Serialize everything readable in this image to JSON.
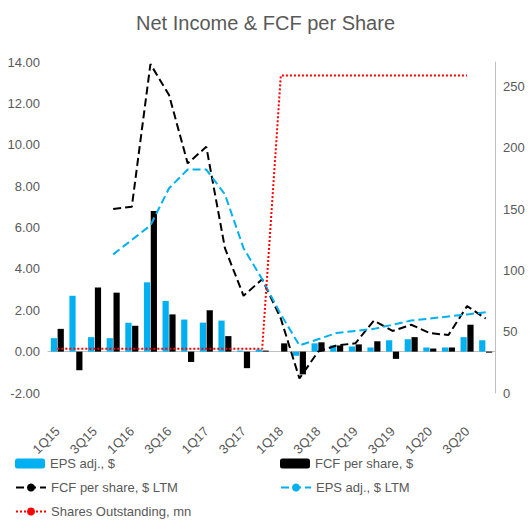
{
  "chart_data": {
    "type": "bar",
    "title": "Net Income & FCF per Share",
    "categories": [
      "1Q15",
      null,
      "3Q15",
      null,
      "1Q16",
      null,
      "3Q16",
      null,
      "1Q17",
      null,
      "3Q17",
      null,
      "1Q18",
      null,
      "3Q18",
      null,
      "1Q19",
      null,
      "3Q19",
      null,
      "1Q20",
      null,
      "3Q20",
      null
    ],
    "series": [
      {
        "name": "EPS adj., $",
        "type": "bar",
        "color": "#00B0F0",
        "values": [
          0.65,
          2.7,
          0.7,
          0.65,
          1.4,
          3.35,
          2.45,
          1.55,
          1.4,
          1.5,
          0.05,
          0.1,
          0.0,
          -0.2,
          0.4,
          0.3,
          0.25,
          0.2,
          0.55,
          0.6,
          0.2,
          0.2,
          0.7,
          0.55
        ]
      },
      {
        "name": "FCF per share, $",
        "type": "bar",
        "color": "#000000",
        "values": [
          1.1,
          -0.9,
          3.1,
          2.85,
          1.25,
          6.8,
          1.8,
          -0.5,
          2.0,
          0.75,
          -0.8,
          0.05,
          0.4,
          -1.1,
          0.45,
          0.3,
          0.35,
          0.5,
          -0.35,
          0.7,
          0.15,
          0.2,
          1.3,
          -0.05
        ]
      },
      {
        "name": "FCF per share, $ LTM",
        "type": "line",
        "color": "#000000",
        "line_style": "dashed",
        "values": [
          null,
          null,
          null,
          6.9,
          7.0,
          13.9,
          12.4,
          9.1,
          9.9,
          5.0,
          2.7,
          3.5,
          1.6,
          -1.3,
          0.0,
          0.3,
          0.4,
          1.5,
          1.0,
          1.3,
          0.9,
          0.8,
          2.2,
          1.6
        ]
      },
      {
        "name": "EPS adj., $ LTM",
        "type": "line",
        "color": "#00B0F0",
        "line_style": "dashed",
        "values": [
          null,
          null,
          null,
          4.7,
          5.4,
          6.1,
          7.9,
          8.8,
          8.8,
          7.6,
          5.0,
          3.5,
          1.8,
          0.3,
          0.6,
          0.9,
          1.0,
          1.1,
          1.3,
          1.5,
          1.6,
          1.7,
          1.8,
          1.9
        ]
      },
      {
        "name": "Shares Outstanding, mn",
        "type": "line",
        "color": "#FF0000",
        "line_style": "dotted",
        "axis": "y2",
        "values": [
          36,
          36,
          36,
          36,
          36,
          36,
          36,
          36,
          36,
          36,
          36,
          36,
          259,
          259,
          259,
          259,
          259,
          259,
          259,
          259,
          259,
          259,
          259,
          null
        ]
      }
    ],
    "ylim": [
      -2,
      14
    ],
    "yticks": [
      {
        "value": -2,
        "label": "-2.00"
      },
      {
        "value": 0,
        "label": "0.00"
      },
      {
        "value": 2,
        "label": "2.00"
      },
      {
        "value": 4,
        "label": "4.00"
      },
      {
        "value": 6,
        "label": "6.00"
      },
      {
        "value": 8,
        "label": "8.00"
      },
      {
        "value": 10,
        "label": "10.00"
      },
      {
        "value": 12,
        "label": "12.00"
      },
      {
        "value": 14,
        "label": "14.00"
      }
    ],
    "y2lim": [
      0,
      270
    ],
    "y2ticks": [
      0,
      50,
      100,
      150,
      200,
      250
    ],
    "grid": false,
    "legend": "bottom"
  }
}
